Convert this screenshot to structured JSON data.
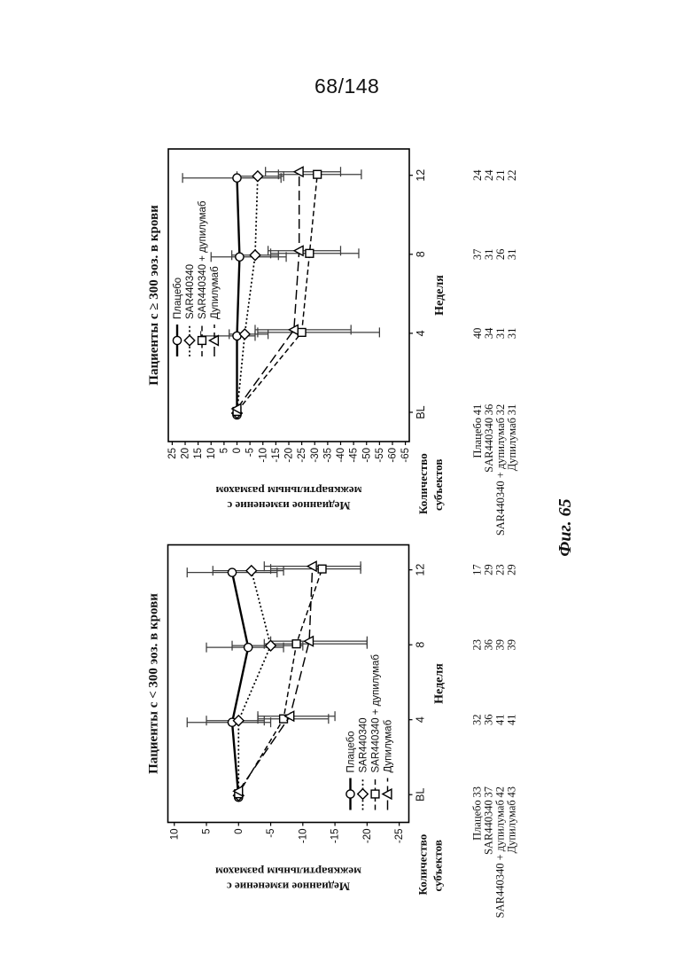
{
  "page": {
    "header_number": "68/148",
    "figure_label": "Фиг. 65"
  },
  "shared": {
    "line_color": "#000000",
    "error_bar_color": "#3d3d3d",
    "marker_fill": "#ffffff"
  },
  "chart_data": [
    {
      "type": "line",
      "title": "Пациенты с ≥ 300 эоз. в крови",
      "xlabel": "Неделя",
      "ylabel_lines": [
        "Медианное изменение с",
        "межквартильным размахом"
      ],
      "x_categories": [
        "BL",
        "4",
        "8",
        "12"
      ],
      "ylim": [
        -65,
        25
      ],
      "ytick_step": 5,
      "grid": false,
      "legend_position": "upper-inside-left",
      "series": [
        {
          "name": "Плацебо",
          "marker": "circle",
          "linestyle": "solid",
          "values": [
            0,
            0,
            -1,
            0
          ],
          "iqr": [
            null,
            [
              14,
              -7
            ],
            [
              10,
              -19
            ],
            [
              21,
              -17
            ]
          ]
        },
        {
          "name": "SAR440340",
          "marker": "diamond",
          "linestyle": "dotted",
          "values": [
            0,
            -3,
            -7,
            -8
          ],
          "iqr": [
            null,
            [
              3,
              -12
            ],
            [
              2,
              -16
            ],
            [
              0,
              -18
            ]
          ]
        },
        {
          "name": "SAR440340 + дупилумаб",
          "marker": "square",
          "linestyle": "dashed",
          "values": [
            0,
            -25,
            -28,
            -31
          ],
          "iqr": [
            null,
            [
              -8,
              -55
            ],
            [
              -13,
              -47
            ],
            [
              -16,
              -48
            ]
          ]
        },
        {
          "name": "Дупилумаб",
          "marker": "triangle",
          "linestyle": "longdash",
          "values": [
            0,
            -22,
            -24,
            -24
          ],
          "iqr": [
            null,
            [
              -7,
              -44
            ],
            [
              -12,
              -40
            ],
            [
              -11,
              -40
            ]
          ]
        }
      ],
      "subjects": {
        "header_lines": [
          "Количество",
          "субъектов"
        ],
        "rows": [
          {
            "label": "Плацебо",
            "counts": [
              41,
              40,
              37,
              24
            ]
          },
          {
            "label": "SAR440340",
            "counts": [
              36,
              34,
              31,
              24
            ]
          },
          {
            "label": "SAR440340 + дупилумаб",
            "counts": [
              32,
              31,
              26,
              21
            ]
          },
          {
            "label": "Дупилумаб",
            "counts": [
              31,
              31,
              31,
              22
            ]
          }
        ]
      }
    },
    {
      "type": "line",
      "title": "Пациенты с < 300 эоз. в крови",
      "xlabel": "Неделя",
      "ylabel_lines": [
        "Медианное изменение с",
        "межквартильным размахом"
      ],
      "x_categories": [
        "BL",
        "4",
        "8",
        "12"
      ],
      "ylim": [
        -25,
        10
      ],
      "ytick_step": 5,
      "grid": false,
      "legend_position": "lower-inside-left",
      "series": [
        {
          "name": "Плацебо",
          "marker": "circle",
          "linestyle": "solid",
          "values": [
            0,
            1,
            -1.5,
            1
          ],
          "iqr": [
            null,
            [
              8,
              -5
            ],
            [
              5,
              -7
            ],
            [
              8,
              -6
            ]
          ]
        },
        {
          "name": "SAR440340",
          "marker": "diamond",
          "linestyle": "dotted",
          "values": [
            0,
            0,
            -5,
            -2
          ],
          "iqr": [
            null,
            [
              5,
              -4
            ],
            [
              1,
              -10
            ],
            [
              4,
              -7
            ]
          ]
        },
        {
          "name": "SAR440340 + дупилумаб",
          "marker": "square",
          "linestyle": "dashed",
          "values": [
            0,
            -7,
            -9,
            -13
          ],
          "iqr": [
            null,
            [
              -3,
              -14
            ],
            [
              -4,
              -20
            ],
            [
              -5,
              -19
            ]
          ]
        },
        {
          "name": "Дупилумаб",
          "marker": "triangle",
          "linestyle": "longdash",
          "values": [
            0,
            -8,
            -11,
            -11.5
          ],
          "iqr": [
            null,
            [
              -3,
              -15
            ],
            [
              -5,
              -20
            ],
            [
              -4,
              -19
            ]
          ]
        }
      ],
      "subjects": {
        "header_lines": [
          "Количество",
          "субъектов"
        ],
        "rows": [
          {
            "label": "Плацебо",
            "counts": [
              33,
              32,
              23,
              17
            ]
          },
          {
            "label": "SAR440340",
            "counts": [
              37,
              36,
              36,
              29
            ]
          },
          {
            "label": "SAR440340 + дупилумаб",
            "counts": [
              42,
              41,
              39,
              23
            ]
          },
          {
            "label": "Дупилумаб",
            "counts": [
              43,
              41,
              39,
              29
            ]
          }
        ]
      }
    }
  ]
}
